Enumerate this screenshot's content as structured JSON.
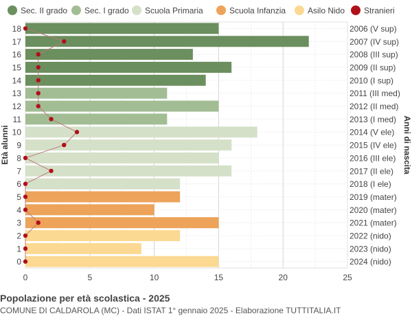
{
  "footer": {
    "title": "Popolazione per età scolastica - 2025",
    "subtitle": "COMUNE DI CALDAROLA (MC) - Dati ISTAT 1° gennaio 2025 - Elaborazione TUTTITALIA.IT"
  },
  "chart_data": {
    "type": "bar",
    "orientation": "horizontal",
    "ylabel_left": "Età alunni",
    "ylabel_right": "Anni di nascita",
    "xlim": [
      0,
      25
    ],
    "xticks": [
      0,
      5,
      10,
      15,
      20,
      25
    ],
    "grid": true,
    "legend_position": "top",
    "legend": [
      {
        "label": "Sec. II grado",
        "color": "#6b8f5e",
        "marker": "circle"
      },
      {
        "label": "Sec. I grado",
        "color": "#a2bd94",
        "marker": "circle"
      },
      {
        "label": "Scuola Primaria",
        "color": "#d5e0c8",
        "marker": "circle"
      },
      {
        "label": "Scuola Infanzia",
        "color": "#eda35a",
        "marker": "circle"
      },
      {
        "label": "Asilo Nido",
        "color": "#fcd992",
        "marker": "circle"
      },
      {
        "label": "Stranieri",
        "color": "#b0101a",
        "marker": "circle"
      }
    ],
    "rows": [
      {
        "age": "18",
        "birth": "2006 (V sup)",
        "value": 15,
        "stranieri": 0,
        "group": 0
      },
      {
        "age": "17",
        "birth": "2007 (IV sup)",
        "value": 22,
        "stranieri": 3,
        "group": 0
      },
      {
        "age": "16",
        "birth": "2008 (III sup)",
        "value": 13,
        "stranieri": 1,
        "group": 0
      },
      {
        "age": "15",
        "birth": "2009 (II sup)",
        "value": 16,
        "stranieri": 1,
        "group": 0
      },
      {
        "age": "14",
        "birth": "2010 (I sup)",
        "value": 14,
        "stranieri": 1,
        "group": 0
      },
      {
        "age": "13",
        "birth": "2011 (III med)",
        "value": 11,
        "stranieri": 1,
        "group": 1
      },
      {
        "age": "12",
        "birth": "2012 (II med)",
        "value": 15,
        "stranieri": 1,
        "group": 1
      },
      {
        "age": "11",
        "birth": "2013 (I med)",
        "value": 11,
        "stranieri": 2,
        "group": 1
      },
      {
        "age": "10",
        "birth": "2014 (V ele)",
        "value": 18,
        "stranieri": 4,
        "group": 2
      },
      {
        "age": "9",
        "birth": "2015 (IV ele)",
        "value": 16,
        "stranieri": 3,
        "group": 2
      },
      {
        "age": "8",
        "birth": "2016 (III ele)",
        "value": 15,
        "stranieri": 0,
        "group": 2
      },
      {
        "age": "7",
        "birth": "2017 (II ele)",
        "value": 16,
        "stranieri": 2,
        "group": 2
      },
      {
        "age": "6",
        "birth": "2018 (I ele)",
        "value": 12,
        "stranieri": 0,
        "group": 2
      },
      {
        "age": "5",
        "birth": "2019 (mater)",
        "value": 12,
        "stranieri": 0,
        "group": 3
      },
      {
        "age": "4",
        "birth": "2020 (mater)",
        "value": 10,
        "stranieri": 0,
        "group": 3
      },
      {
        "age": "3",
        "birth": "2021 (mater)",
        "value": 15,
        "stranieri": 1,
        "group": 3
      },
      {
        "age": "2",
        "birth": "2022 (nido)",
        "value": 12,
        "stranieri": 0,
        "group": 4
      },
      {
        "age": "1",
        "birth": "2023 (nido)",
        "value": 9,
        "stranieri": 0,
        "group": 4
      },
      {
        "age": "0",
        "birth": "2024 (nido)",
        "value": 15,
        "stranieri": 0,
        "group": 4
      }
    ]
  }
}
